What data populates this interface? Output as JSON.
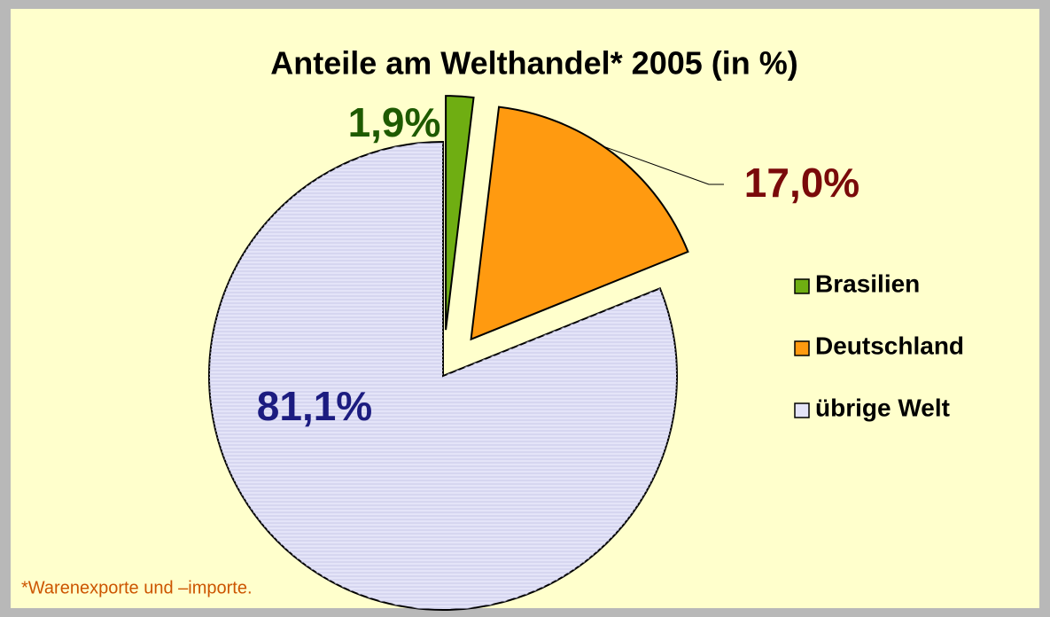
{
  "chart_data": {
    "type": "pie",
    "title": "Anteile am Welthandel* 2005 (in %)",
    "note": "*Warenexporte und –importe.",
    "categories": [
      "Brasilien",
      "Deutschland",
      "übrige Welt"
    ],
    "values": [
      1.9,
      17.0,
      81.1
    ],
    "value_labels": [
      "1,9%",
      "17,0%",
      "81,1%"
    ],
    "colors": [
      "#6fae12",
      "#ff9a10",
      "#e4e4f8"
    ],
    "label_colors": [
      "#1e5a00",
      "#7a0a0a",
      "#1c1c80"
    ],
    "exploded": [
      true,
      true,
      false
    ],
    "legend": "right"
  }
}
